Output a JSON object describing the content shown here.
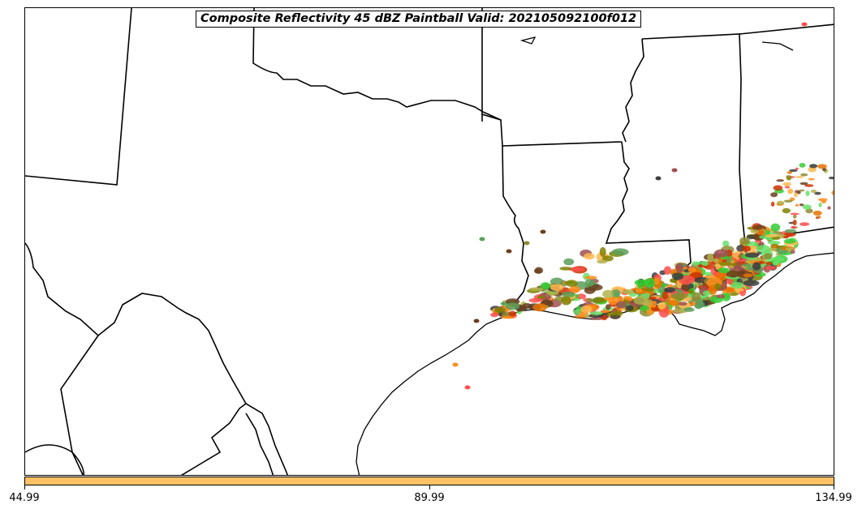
{
  "title": "Composite Reflectivity 45 dBZ Paintball Valid: 202105092100f012",
  "colorbar": {
    "color": "#ffc266",
    "ticks": [
      "44.99",
      "89.99",
      "134.99"
    ]
  },
  "member_colors": [
    "#ff4d4d",
    "#cc3300",
    "#ff8c1a",
    "#ffb84d",
    "#b3b34d",
    "#8c8c33",
    "#5c9e5c",
    "#33cc33",
    "#66e066",
    "#a05050",
    "#6b3f1f",
    "#3d3d3d",
    "#808000",
    "#e67300"
  ],
  "icons": [
    "state-boundaries",
    "coastline"
  ]
}
